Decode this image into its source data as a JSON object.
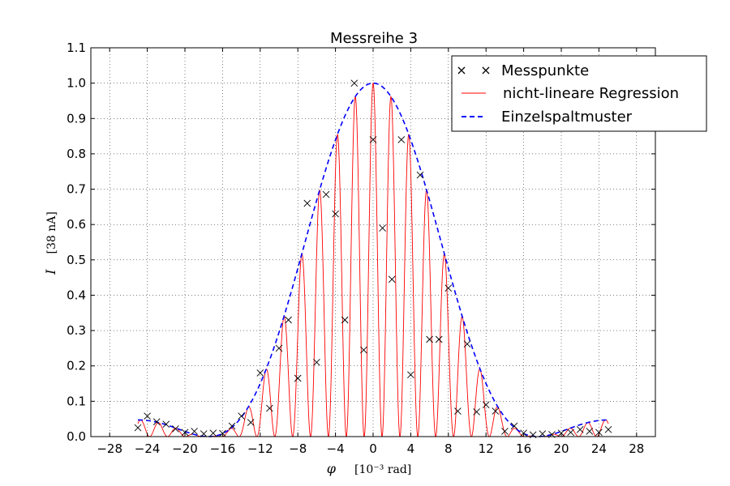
{
  "chart_data": {
    "type": "line",
    "title": "Messreihe 3",
    "xlabel_symbol": "φ",
    "xlabel_unit": "[10⁻³ rad]",
    "ylabel_symbol": "I",
    "ylabel_unit": "[38 nA]",
    "xlim": [
      -30,
      30
    ],
    "ylim": [
      0,
      1.1
    ],
    "xticks": [
      -28,
      -24,
      -20,
      -16,
      -12,
      -8,
      -4,
      0,
      4,
      8,
      12,
      16,
      20,
      24,
      28
    ],
    "yticks": [
      0.0,
      0.1,
      0.2,
      0.3,
      0.4,
      0.5,
      0.6,
      0.7,
      0.8,
      0.9,
      1.0,
      1.1
    ],
    "xtick_labels": [
      "−28",
      "−24",
      "−20",
      "−16",
      "−12",
      "−8",
      "−4",
      "0",
      "4",
      "8",
      "12",
      "16",
      "20",
      "24",
      "28"
    ],
    "ytick_labels": [
      "0.0",
      "0.1",
      "0.2",
      "0.3",
      "0.4",
      "0.5",
      "0.6",
      "0.7",
      "0.8",
      "0.9",
      "1.0",
      "1.1"
    ],
    "grid": true,
    "legend_position": "top-right",
    "legend": [
      {
        "label": "Messpunkte",
        "style": "markers-x",
        "color": "#000000"
      },
      {
        "label": "nicht-lineare Regression",
        "style": "solid",
        "color": "#ff0000"
      },
      {
        "label": "Einzelspaltmuster",
        "style": "dashed",
        "color": "#0000ff"
      }
    ],
    "series": [
      {
        "name": "Messpunkte",
        "kind": "scatter",
        "x": [
          -25,
          -24,
          -23,
          -22,
          -21,
          -20,
          -19,
          -18,
          -17,
          -16,
          -15,
          -14,
          -13,
          -12,
          -11,
          -10,
          -9,
          -8,
          -7,
          -6,
          -5,
          -4,
          -3,
          -2,
          -1,
          0,
          1,
          2,
          3,
          4,
          5,
          6,
          7,
          8,
          9,
          10,
          11,
          12,
          13,
          14,
          15,
          16,
          17,
          18,
          19,
          20,
          21,
          22,
          23,
          24,
          25
        ],
        "y": [
          0.025,
          0.058,
          0.042,
          0.035,
          0.022,
          0.012,
          0.015,
          0.008,
          0.01,
          0.009,
          0.03,
          0.058,
          0.04,
          0.18,
          0.08,
          0.25,
          0.33,
          0.165,
          0.66,
          0.21,
          0.685,
          0.63,
          0.33,
          1.0,
          0.245,
          0.84,
          0.59,
          0.445,
          0.84,
          0.175,
          0.74,
          0.275,
          0.275,
          0.42,
          0.072,
          0.262,
          0.07,
          0.09,
          0.072,
          0.015,
          0.03,
          0.01,
          0.005,
          0.008,
          0.006,
          0.01,
          0.012,
          0.02,
          0.015,
          0.012,
          0.02
        ]
      },
      {
        "name": "nicht-lineare Regression",
        "kind": "line",
        "model": "envelope(phi) * cos^2(pi * phi / 1.9)",
        "x_range": [
          -25,
          25
        ]
      },
      {
        "name": "Einzelspaltmuster",
        "kind": "line",
        "model": "sinc^2(pi * phi / 17.5)",
        "x_range": [
          -25,
          25
        ]
      }
    ]
  }
}
